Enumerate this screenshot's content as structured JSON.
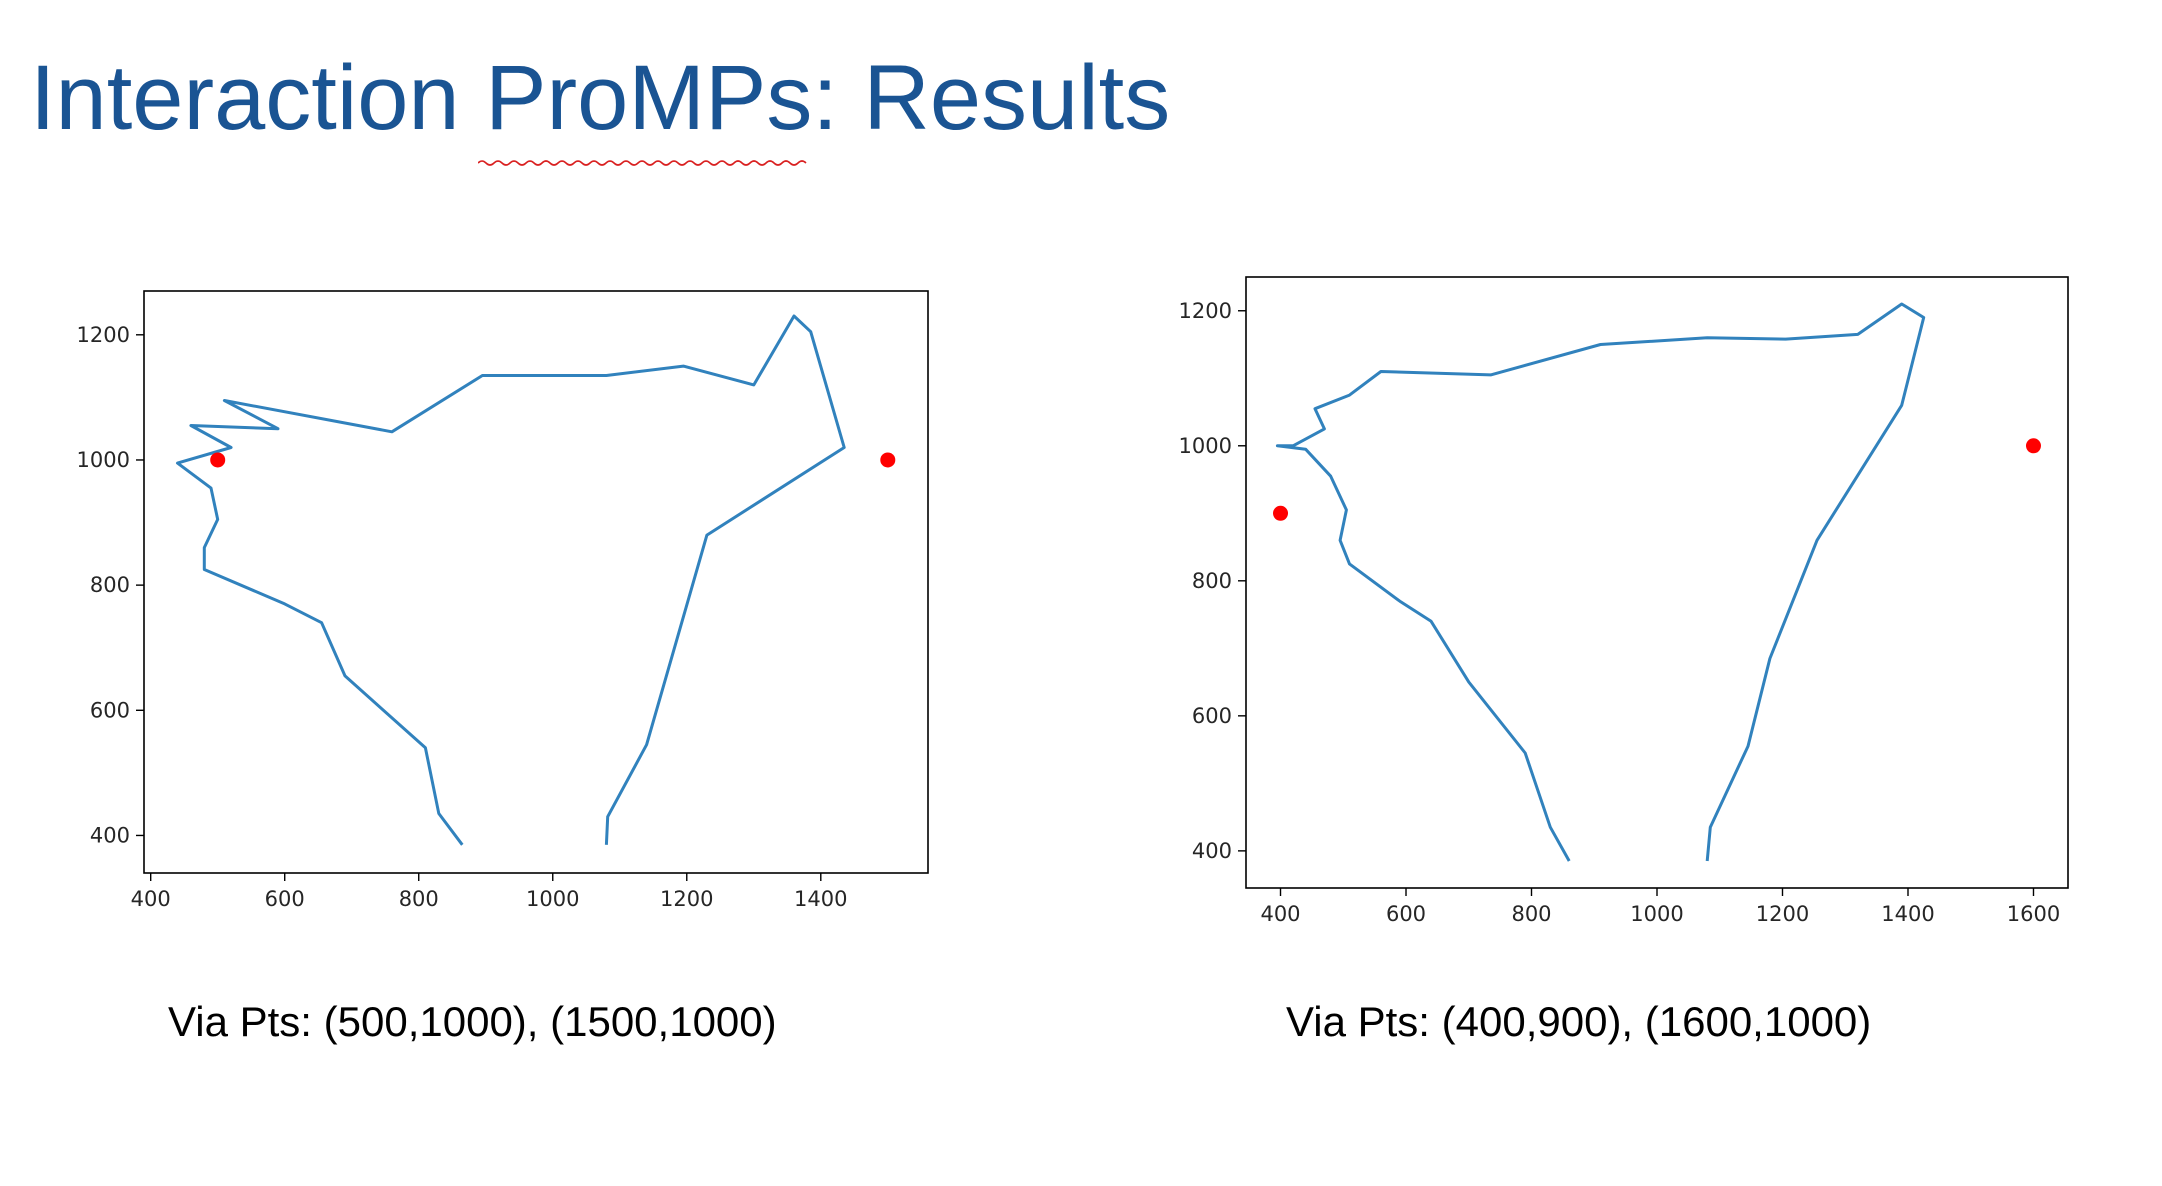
{
  "slide": {
    "title": "Interaction ProMPs: Results",
    "title_color": "#1a5493"
  },
  "captions": [
    "Via Pts: (500,1000), (1500,1000)",
    "Via Pts: (400,900), (1600,1000)"
  ],
  "chart_data": [
    {
      "type": "line",
      "title": "",
      "xlabel": "",
      "ylabel": "",
      "xlim": [
        390,
        1560
      ],
      "ylim": [
        340,
        1270
      ],
      "xticks": [
        400,
        600,
        800,
        1000,
        1200,
        1400
      ],
      "yticks": [
        400,
        600,
        800,
        1000,
        1200
      ],
      "grid": false,
      "series": [
        {
          "color": "#3182bd",
          "x": [
            865,
            830,
            810,
            690,
            655,
            600,
            480,
            480,
            500,
            490,
            440,
            520,
            460,
            590,
            510,
            760,
            895,
            1080,
            1195,
            1300,
            1360,
            1385,
            1435,
            1230,
            1140,
            1082,
            1080
          ],
          "y": [
            385,
            435,
            540,
            655,
            740,
            770,
            825,
            860,
            905,
            955,
            995,
            1020,
            1055,
            1050,
            1095,
            1045,
            1135,
            1135,
            1150,
            1120,
            1230,
            1205,
            1020,
            880,
            545,
            430,
            385
          ]
        }
      ],
      "points": {
        "color": "#ff0000",
        "x": [
          500,
          1500
        ],
        "y": [
          1000,
          1000
        ]
      }
    },
    {
      "type": "line",
      "title": "",
      "xlabel": "",
      "ylabel": "",
      "xlim": [
        345,
        1655
      ],
      "ylim": [
        345,
        1250
      ],
      "xticks": [
        400,
        600,
        800,
        1000,
        1200,
        1400,
        1600
      ],
      "yticks": [
        400,
        600,
        800,
        1000,
        1200
      ],
      "grid": false,
      "series": [
        {
          "color": "#3182bd",
          "x": [
            860,
            830,
            790,
            700,
            640,
            590,
            510,
            495,
            505,
            480,
            440,
            395,
            420,
            470,
            455,
            510,
            560,
            735,
            910,
            1080,
            1205,
            1320,
            1390,
            1425,
            1390,
            1255,
            1180,
            1145,
            1085,
            1080
          ],
          "y": [
            385,
            435,
            545,
            650,
            740,
            770,
            825,
            860,
            905,
            955,
            995,
            1000,
            1000,
            1025,
            1055,
            1075,
            1110,
            1105,
            1150,
            1160,
            1158,
            1165,
            1210,
            1190,
            1060,
            860,
            685,
            555,
            435,
            385
          ]
        }
      ],
      "points": {
        "color": "#ff0000",
        "x": [
          400,
          1600
        ],
        "y": [
          900,
          1000
        ]
      }
    }
  ]
}
